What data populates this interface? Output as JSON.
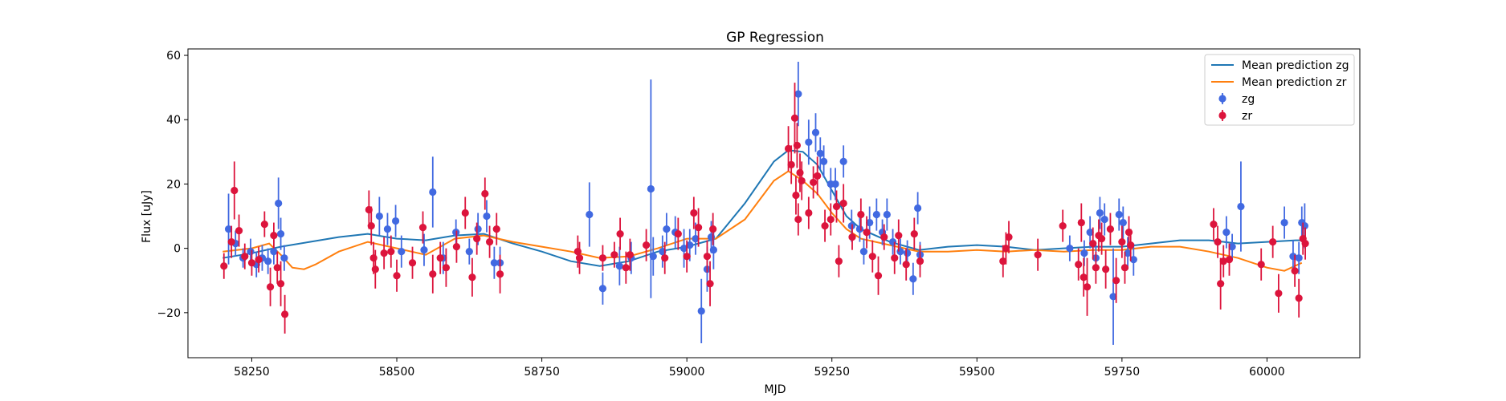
{
  "chart_data": {
    "type": "scatter",
    "title": "GP Regression",
    "xlabel": "MJD",
    "ylabel": "Flux [uJy]",
    "xlim": [
      58140,
      60160
    ],
    "ylim": [
      -34,
      62
    ],
    "xticks": [
      58250,
      58500,
      58750,
      59000,
      59250,
      59500,
      59750,
      60000
    ],
    "yticks": [
      -20,
      0,
      20,
      40,
      60
    ],
    "ytick_labels": [
      "−20",
      "0",
      "20",
      "40",
      "60"
    ],
    "grid": false,
    "legend_position": "top-right",
    "legend": [
      {
        "label": "Mean prediction zg",
        "kind": "line",
        "color": "#1f77b4"
      },
      {
        "label": "Mean prediction zr",
        "kind": "line",
        "color": "#ff7f0e"
      },
      {
        "label": "zg",
        "kind": "marker",
        "color": "#4169e1"
      },
      {
        "label": "zr",
        "kind": "marker",
        "color": "#dc143c"
      }
    ],
    "lines": [
      {
        "name": "Mean prediction zg",
        "color": "#1f77b4",
        "x": [
          58200,
          58250,
          58300,
          58350,
          58400,
          58450,
          58500,
          58550,
          58600,
          58650,
          58700,
          58750,
          58800,
          58850,
          58900,
          58950,
          59000,
          59050,
          59100,
          59150,
          59175,
          59200,
          59225,
          59250,
          59275,
          59300,
          59350,
          59400,
          59450,
          59500,
          59550,
          59600,
          59650,
          59700,
          59750,
          59800,
          59850,
          59900,
          59950,
          60000,
          60050,
          60060
        ],
        "y": [
          -3,
          -1.5,
          0.5,
          2,
          3.5,
          4.5,
          3,
          2.5,
          4,
          4.5,
          1.5,
          -1,
          -4,
          -5.5,
          -4,
          -1,
          0.5,
          3,
          14,
          27,
          30.5,
          30,
          26,
          18,
          10,
          6,
          2,
          -0.5,
          0.5,
          1,
          0.5,
          -0.5,
          0,
          0.5,
          0.5,
          1.5,
          2.5,
          2.5,
          1.5,
          2,
          2.5,
          2.5
        ]
      },
      {
        "name": "Mean prediction zr",
        "color": "#ff7f0e",
        "x": [
          58200,
          58250,
          58280,
          58300,
          58320,
          58340,
          58360,
          58400,
          58450,
          58500,
          58550,
          58600,
          58650,
          58700,
          58750,
          58800,
          58850,
          58900,
          58950,
          59000,
          59050,
          59100,
          59150,
          59175,
          59200,
          59225,
          59250,
          59275,
          59300,
          59350,
          59400,
          59450,
          59500,
          59550,
          59600,
          59650,
          59700,
          59750,
          59800,
          59850,
          59900,
          59950,
          60000,
          60030,
          60060
        ],
        "y": [
          -1,
          0,
          1.5,
          -2,
          -6,
          -6.5,
          -5,
          -1,
          2,
          0,
          -2,
          3,
          4,
          2,
          0.5,
          -1,
          -3,
          -2.5,
          0,
          3,
          3,
          9,
          21,
          24,
          21,
          17,
          11,
          6,
          3,
          1,
          -1,
          -1,
          -0.5,
          -1,
          -0.5,
          -1,
          -0.5,
          -0.5,
          0.5,
          0.5,
          -1,
          -3,
          -6,
          -7,
          -4.5
        ]
      }
    ],
    "series": [
      {
        "name": "zg",
        "color": "#4169e1",
        "points": [
          [
            58210,
            6,
            11
          ],
          [
            58222,
            1.5,
            4
          ],
          [
            58235,
            -3,
            3
          ],
          [
            58248,
            -1,
            4
          ],
          [
            58258,
            -5,
            4
          ],
          [
            58268,
            -3,
            4
          ],
          [
            58278,
            -4,
            4
          ],
          [
            58288,
            -1,
            4
          ],
          [
            58296,
            14,
            8
          ],
          [
            58300,
            4.5,
            5
          ],
          [
            58306,
            -3,
            4
          ],
          [
            58470,
            10,
            6
          ],
          [
            58484,
            6,
            5
          ],
          [
            58498,
            8.5,
            5
          ],
          [
            58508,
            -1,
            5
          ],
          [
            58547,
            -0.5,
            5
          ],
          [
            58562,
            17.5,
            11
          ],
          [
            58580,
            -3,
            5
          ],
          [
            58602,
            5,
            4
          ],
          [
            58625,
            -1,
            4
          ],
          [
            58640,
            6,
            5
          ],
          [
            58655,
            10,
            5
          ],
          [
            58668,
            -4.5,
            5
          ],
          [
            58678,
            -4.5,
            5
          ],
          [
            58832,
            10.5,
            10
          ],
          [
            58855,
            -12.5,
            5
          ],
          [
            58884,
            -5.5,
            6
          ],
          [
            58904,
            -3,
            5
          ],
          [
            58938,
            18.5,
            34
          ],
          [
            58942,
            -2.5,
            6
          ],
          [
            58958,
            -1,
            5
          ],
          [
            58965,
            6,
            5
          ],
          [
            58980,
            5,
            5
          ],
          [
            58995,
            0,
            6
          ],
          [
            59005,
            1,
            5
          ],
          [
            59015,
            3,
            5
          ],
          [
            59025,
            -19.5,
            10
          ],
          [
            59035,
            -6.5,
            7
          ],
          [
            59042,
            3.5,
            5
          ],
          [
            59046,
            -0.5,
            6
          ],
          [
            59192,
            48,
            10
          ],
          [
            59210,
            33,
            7
          ],
          [
            59222,
            36,
            6
          ],
          [
            59230,
            29.5,
            5
          ],
          [
            59236,
            27,
            5
          ],
          [
            59248,
            20,
            5
          ],
          [
            59256,
            20,
            5
          ],
          [
            59270,
            27,
            5
          ],
          [
            59284,
            7,
            5
          ],
          [
            59298,
            6,
            4
          ],
          [
            59305,
            -1,
            4
          ],
          [
            59315,
            8,
            5
          ],
          [
            59327,
            10.5,
            5
          ],
          [
            59337,
            5,
            4
          ],
          [
            59345,
            10.5,
            5
          ],
          [
            59355,
            2,
            4
          ],
          [
            59368,
            -1,
            4
          ],
          [
            59380,
            -1.5,
            4
          ],
          [
            59390,
            -9.5,
            5
          ],
          [
            59398,
            12.5,
            5
          ],
          [
            59402,
            -2,
            4
          ],
          [
            59660,
            0,
            4
          ],
          [
            59685,
            -1.5,
            4
          ],
          [
            59695,
            5,
            5
          ],
          [
            59705,
            -3,
            4
          ],
          [
            59712,
            11,
            5
          ],
          [
            59720,
            9,
            5
          ],
          [
            59735,
            -15,
            15
          ],
          [
            59745,
            10.5,
            5
          ],
          [
            59752,
            8,
            5
          ],
          [
            59760,
            -1.5,
            5
          ],
          [
            59770,
            -3.5,
            5
          ],
          [
            59930,
            5,
            5
          ],
          [
            59940,
            0.5,
            4
          ],
          [
            59955,
            13,
            14
          ],
          [
            60030,
            8,
            5
          ],
          [
            60045,
            -2.5,
            5
          ],
          [
            60055,
            -3,
            5
          ],
          [
            60060,
            8,
            5
          ],
          [
            60065,
            7,
            7
          ]
        ]
      },
      {
        "name": "zr",
        "color": "#dc143c",
        "points": [
          [
            58202,
            -5.5,
            4
          ],
          [
            58215,
            2,
            5
          ],
          [
            58220,
            18,
            9
          ],
          [
            58228,
            5.5,
            5
          ],
          [
            58238,
            -2.5,
            4
          ],
          [
            58250,
            -4.5,
            4
          ],
          [
            58262,
            -3.5,
            4
          ],
          [
            58272,
            7.5,
            4
          ],
          [
            58282,
            -12,
            6
          ],
          [
            58288,
            4,
            4
          ],
          [
            58294,
            -6,
            5
          ],
          [
            58300,
            -11,
            7
          ],
          [
            58307,
            -20.5,
            6
          ],
          [
            58452,
            12,
            6
          ],
          [
            58456,
            7,
            6
          ],
          [
            58460,
            -3,
            5
          ],
          [
            58463,
            -6.5,
            6
          ],
          [
            58478,
            -1.5,
            5
          ],
          [
            58490,
            -1,
            5
          ],
          [
            58500,
            -8.5,
            5
          ],
          [
            58527,
            -4.5,
            5
          ],
          [
            58545,
            6.5,
            5
          ],
          [
            58562,
            -8,
            6
          ],
          [
            58575,
            -3,
            5
          ],
          [
            58585,
            -6,
            6
          ],
          [
            58603,
            0.5,
            5
          ],
          [
            58618,
            11,
            5
          ],
          [
            58630,
            -9,
            6
          ],
          [
            58638,
            3,
            5
          ],
          [
            58652,
            17,
            5
          ],
          [
            58660,
            2,
            5
          ],
          [
            58672,
            6,
            5
          ],
          [
            58678,
            -8,
            6
          ],
          [
            58812,
            -1,
            5
          ],
          [
            58815,
            -3,
            5
          ],
          [
            58855,
            -3,
            4
          ],
          [
            58875,
            -2,
            4
          ],
          [
            58885,
            4.5,
            5
          ],
          [
            58895,
            -6,
            5
          ],
          [
            58902,
            -2,
            5
          ],
          [
            58930,
            1,
            5
          ],
          [
            58962,
            -3,
            5
          ],
          [
            58985,
            4.5,
            5
          ],
          [
            59000,
            -2.5,
            5
          ],
          [
            59012,
            11,
            5
          ],
          [
            59020,
            6.5,
            6
          ],
          [
            59035,
            -2.5,
            5
          ],
          [
            59040,
            -11,
            7
          ],
          [
            59045,
            6,
            5
          ],
          [
            59175,
            31,
            7
          ],
          [
            59180,
            26,
            6
          ],
          [
            59186,
            40.5,
            11
          ],
          [
            59188,
            16.5,
            6
          ],
          [
            59190,
            32,
            7
          ],
          [
            59192,
            9,
            5
          ],
          [
            59195,
            23.5,
            6
          ],
          [
            59198,
            21,
            6
          ],
          [
            59210,
            11,
            5
          ],
          [
            59218,
            20.5,
            5
          ],
          [
            59225,
            22.5,
            6
          ],
          [
            59238,
            7,
            5
          ],
          [
            59248,
            9,
            5
          ],
          [
            59258,
            13,
            5
          ],
          [
            59262,
            -4,
            5
          ],
          [
            59270,
            14,
            6
          ],
          [
            59285,
            3.5,
            4
          ],
          [
            59300,
            10.5,
            5
          ],
          [
            59310,
            5,
            5
          ],
          [
            59320,
            -2.5,
            5
          ],
          [
            59330,
            -8.5,
            6
          ],
          [
            59340,
            3.5,
            4
          ],
          [
            59358,
            -3,
            5
          ],
          [
            59365,
            4,
            5
          ],
          [
            59378,
            -5,
            5
          ],
          [
            59392,
            4.5,
            5
          ],
          [
            59402,
            -4,
            5
          ],
          [
            59545,
            -4,
            5
          ],
          [
            59550,
            0,
            5
          ],
          [
            59555,
            3.5,
            5
          ],
          [
            59605,
            -2,
            5
          ],
          [
            59648,
            7,
            5
          ],
          [
            59675,
            -5,
            5
          ],
          [
            59680,
            8,
            6
          ],
          [
            59684,
            -9,
            6
          ],
          [
            59690,
            -12,
            9
          ],
          [
            59700,
            1.5,
            5
          ],
          [
            59705,
            -6,
            5
          ],
          [
            59710,
            4,
            5
          ],
          [
            59715,
            3,
            5
          ],
          [
            59722,
            -6.5,
            6
          ],
          [
            59730,
            6,
            5
          ],
          [
            59740,
            -10,
            7
          ],
          [
            59750,
            2,
            5
          ],
          [
            59755,
            -6,
            5
          ],
          [
            59762,
            5,
            5
          ],
          [
            59765,
            1,
            5
          ],
          [
            59908,
            7.5,
            5
          ],
          [
            59915,
            2,
            5
          ],
          [
            59920,
            -11,
            8
          ],
          [
            59925,
            -4,
            5
          ],
          [
            59935,
            -3.5,
            5
          ],
          [
            59990,
            -5,
            5
          ],
          [
            60010,
            2,
            5
          ],
          [
            60020,
            -14,
            6
          ],
          [
            60048,
            -7,
            5
          ],
          [
            60055,
            -15.5,
            6
          ],
          [
            60062,
            3,
            5
          ],
          [
            60066,
            1.5,
            5
          ]
        ]
      }
    ]
  }
}
